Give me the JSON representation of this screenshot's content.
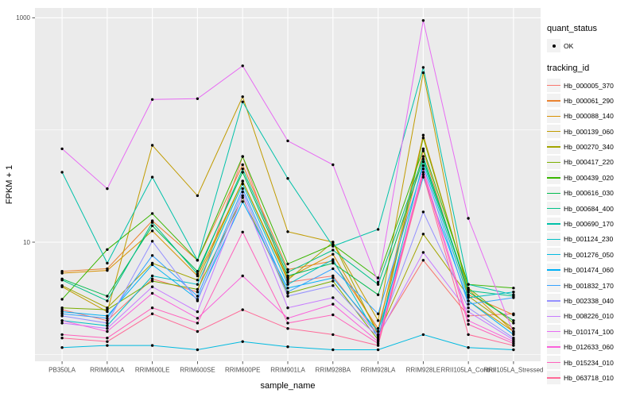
{
  "chart_data": {
    "type": "line",
    "title": "",
    "xlabel": "sample_name",
    "ylabel": "FPKM + 1",
    "x_categories": [
      "PB350LA",
      "RRIM600LA",
      "RRIM600LE",
      "RRIM600SE",
      "RRIM600PE",
      "RRIM901LA",
      "RRIM928BA",
      "RRIM928LA",
      "RRIM928LE",
      "RRII105LA_Control",
      "RRII105LA_Stressed"
    ],
    "y_scale": "log10",
    "y_major_ticks": [
      {
        "label": "1000",
        "value": 1000
      },
      {
        "label": "10",
        "value": 10
      }
    ],
    "y_minor_ticks": [
      100,
      1
    ],
    "ylim": [
      0.87,
      1225
    ],
    "grid": true,
    "legend_position": "right",
    "quant_status_legend": {
      "title": "quant_status",
      "items": [
        {
          "label": "OK",
          "symbol": "point"
        }
      ]
    },
    "tracking_legend_title": "tracking_id",
    "series": [
      {
        "name": "Hb_000005_370",
        "color": "#F8766D",
        "values": [
          2.5,
          2.0,
          4.7,
          3.6,
          58,
          4.4,
          5.0,
          1.5,
          6.9,
          2.2,
          2.3
        ]
      },
      {
        "name": "Hb_000061_290",
        "color": "#EA8331",
        "values": [
          5.5,
          5.8,
          15.5,
          6.9,
          49,
          5.7,
          6.8,
          1.7,
          65,
          3.4,
          2.25
        ]
      },
      {
        "name": "Hb_000088_140",
        "color": "#D89000",
        "values": [
          5.3,
          5.6,
          12.6,
          5.0,
          35,
          4.8,
          7.8,
          1.6,
          90,
          3.8,
          1.6
        ]
      },
      {
        "name": "Hb_000139_060",
        "color": "#C09B00",
        "values": [
          4.0,
          2.4,
          73,
          26,
          198,
          12.4,
          10,
          2.0,
          324,
          3.0,
          1.6
        ]
      },
      {
        "name": "Hb_000270_340",
        "color": "#A3A500",
        "values": [
          4.1,
          2.6,
          6.5,
          4.6,
          35,
          4.6,
          10,
          1.5,
          11.8,
          3.3,
          1.7
        ]
      },
      {
        "name": "Hb_000417_220",
        "color": "#7CAE00",
        "values": [
          2.6,
          2.5,
          4.5,
          3.8,
          25,
          3.5,
          4.5,
          1.35,
          85,
          3.9,
          1.9
        ]
      },
      {
        "name": "Hb_000439_020",
        "color": "#39B600",
        "values": [
          3.1,
          8.6,
          18,
          6.9,
          58,
          6.4,
          9.5,
          4.8,
          68,
          4.2,
          3.9
        ]
      },
      {
        "name": "Hb_000616_030",
        "color": "#00BB4E",
        "values": [
          4.7,
          3.3,
          14,
          5.5,
          42,
          5.0,
          6.5,
          3.4,
          55,
          3.6,
          2.0
        ]
      },
      {
        "name": "Hb_000684_400",
        "color": "#00C087",
        "values": [
          4.6,
          3.0,
          15,
          5.2,
          45,
          5.4,
          8.5,
          4.2,
          58,
          3.7,
          3.3
        ]
      },
      {
        "name": "Hb_000690_170",
        "color": "#00C1A9",
        "values": [
          42,
          6.5,
          38,
          6.9,
          178,
          37,
          9.2,
          13,
          361,
          4.2,
          3.4
        ]
      },
      {
        "name": "Hb_001124_230",
        "color": "#00BFC4",
        "values": [
          2.0,
          1.8,
          5.0,
          4.2,
          33,
          4.2,
          7.0,
          1.4,
          52,
          3.2,
          3.6
        ]
      },
      {
        "name": "Hb_001276_050",
        "color": "#00BAE0",
        "values": [
          1.15,
          1.2,
          1.2,
          1.1,
          1.3,
          1.17,
          1.1,
          1.1,
          1.5,
          1.15,
          1.1
        ]
      },
      {
        "name": "Hb_001474_060",
        "color": "#00B0F6",
        "values": [
          2.4,
          2.2,
          6.3,
          3.1,
          23,
          3.9,
          4.8,
          1.6,
          38,
          3.0,
          1.5
        ]
      },
      {
        "name": "Hb_001832_170",
        "color": "#35A2FF",
        "values": [
          2.3,
          2.1,
          7.6,
          3.3,
          30,
          3.6,
          5.8,
          2.3,
          48,
          2.8,
          3.2
        ]
      },
      {
        "name": "Hb_002338_040",
        "color": "#9590FF",
        "values": [
          2.2,
          1.9,
          10.2,
          3.0,
          28,
          3.3,
          4.1,
          1.5,
          18.6,
          2.6,
          1.4
        ]
      },
      {
        "name": "Hb_008226_010",
        "color": "#C77CFF",
        "values": [
          1.9,
          1.7,
          4.0,
          2.4,
          26,
          2.6,
          3.2,
          1.45,
          8.1,
          2.4,
          1.35
        ]
      },
      {
        "name": "Hb_010174_100",
        "color": "#E76BF3",
        "values": [
          68,
          30,
          187,
          190,
          373,
          80,
          49,
          4.4,
          946,
          16.3,
          1.55
        ]
      },
      {
        "name": "Hb_012633_060",
        "color": "#FA62DB",
        "values": [
          2.0,
          1.6,
          3.5,
          2.1,
          5.0,
          2.1,
          2.8,
          1.3,
          45,
          2.0,
          1.3
        ]
      },
      {
        "name": "Hb_015234_010",
        "color": "#FF62BC",
        "values": [
          1.5,
          1.4,
          2.6,
          1.9,
          12.3,
          1.9,
          2.25,
          1.25,
          42,
          1.85,
          1.25
        ]
      },
      {
        "name": "Hb_063718_010",
        "color": "#FF6A98",
        "values": [
          1.4,
          1.3,
          2.3,
          1.6,
          2.5,
          1.7,
          1.5,
          1.2,
          40,
          1.5,
          1.2
        ]
      }
    ]
  },
  "style": {
    "panel_bg": "#EBEBEB",
    "grid_color": "#FFFFFF",
    "tick_label_color": "#4D4D4D",
    "text_color": "#000000",
    "point_color": "#000000",
    "legend_key_bg": "#F2F2F2"
  }
}
